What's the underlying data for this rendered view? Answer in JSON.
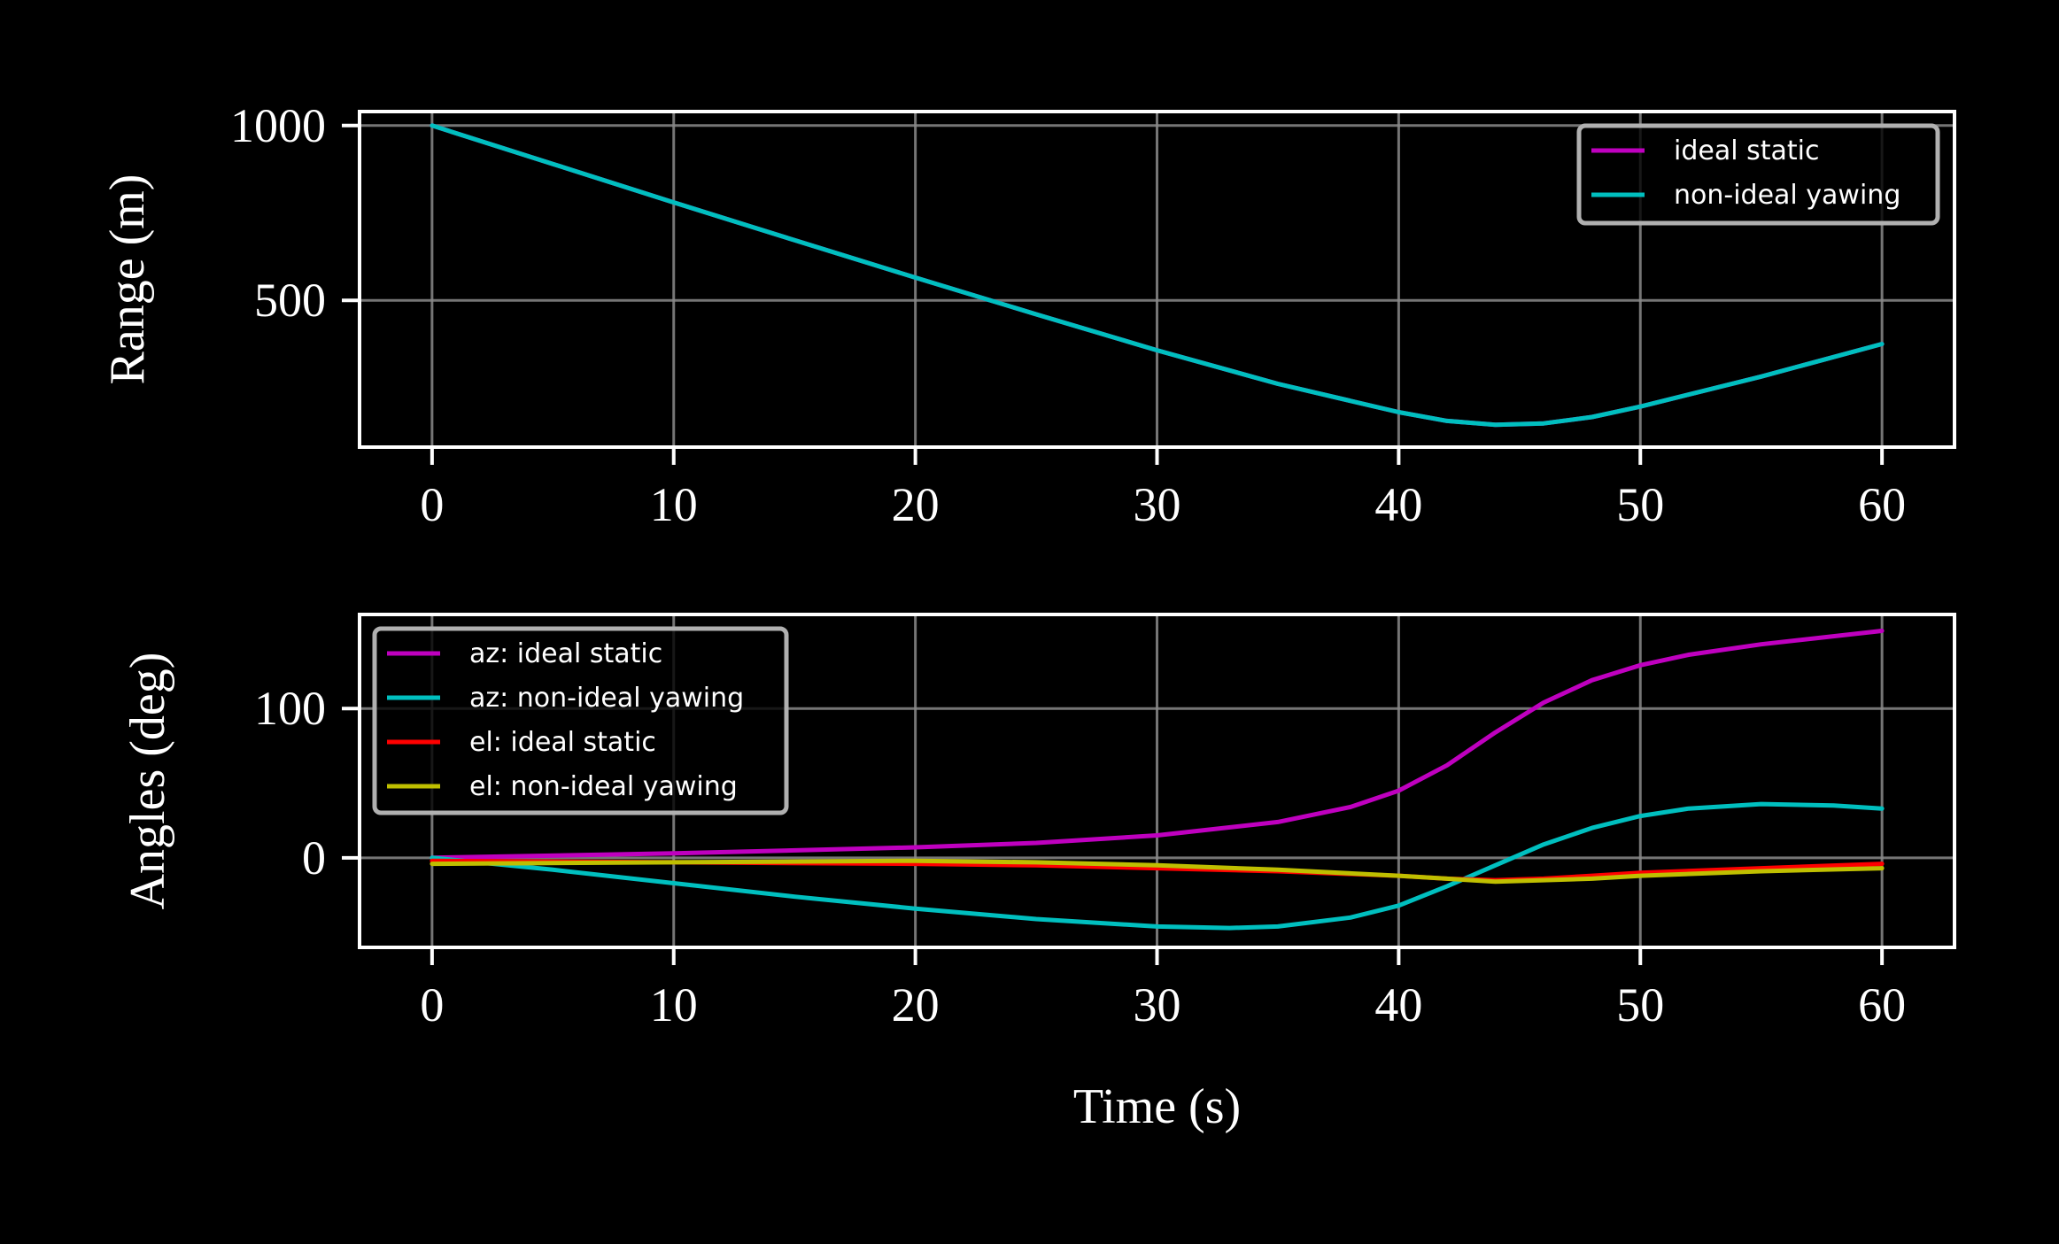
{
  "chart_data": [
    {
      "type": "line",
      "ylabel": "Range (m)",
      "xlabel": "",
      "xlim": [
        -3,
        63
      ],
      "ylim": [
        80,
        1040
      ],
      "xticks": [
        0,
        10,
        20,
        30,
        40,
        50,
        60
      ],
      "yticks": [
        500,
        1000
      ],
      "grid": true,
      "legend_position": "upper right",
      "series": [
        {
          "name": "ideal static",
          "color": "#bf00bf",
          "x": [
            0,
            5,
            10,
            15,
            20,
            25,
            30,
            35,
            40,
            42,
            44,
            46,
            48,
            50,
            55,
            60
          ],
          "y": [
            1000,
            890,
            780,
            672,
            565,
            460,
            357,
            261,
            180,
            155,
            144,
            148,
            166,
            196,
            282,
            375
          ]
        },
        {
          "name": "non-ideal yawing",
          "color": "#00bfbf",
          "x": [
            0,
            5,
            10,
            15,
            20,
            25,
            30,
            35,
            40,
            42,
            44,
            46,
            48,
            50,
            55,
            60
          ],
          "y": [
            1000,
            890,
            780,
            672,
            565,
            460,
            357,
            261,
            180,
            155,
            144,
            148,
            166,
            196,
            282,
            375
          ]
        }
      ]
    },
    {
      "type": "line",
      "ylabel": "Angles (deg)",
      "xlabel": "Time (s)",
      "xlim": [
        -3,
        63
      ],
      "ylim": [
        -60,
        163
      ],
      "xticks": [
        0,
        10,
        20,
        30,
        40,
        50,
        60
      ],
      "yticks": [
        0,
        100
      ],
      "grid": true,
      "legend_position": "upper left",
      "series": [
        {
          "name": "az: ideal static",
          "color": "#bf00bf",
          "x": [
            0,
            10,
            20,
            25,
            30,
            35,
            38,
            40,
            42,
            44,
            46,
            48,
            50,
            52,
            55,
            60
          ],
          "y": [
            0,
            3,
            7,
            10,
            15,
            24,
            34,
            45,
            62,
            84,
            104,
            119,
            129,
            136,
            143,
            152
          ]
        },
        {
          "name": "az: non-ideal yawing",
          "color": "#00bfbf",
          "x": [
            0,
            5,
            10,
            15,
            20,
            25,
            30,
            33,
            35,
            38,
            40,
            42,
            44,
            46,
            48,
            50,
            52,
            55,
            58,
            60
          ],
          "y": [
            0,
            -8,
            -17,
            -26,
            -34,
            -41,
            -46,
            -47,
            -46,
            -40,
            -32,
            -19,
            -5,
            9,
            20,
            28,
            33,
            36,
            35,
            33
          ]
        },
        {
          "name": "el: ideal static",
          "color": "#ff0000",
          "x": [
            0,
            10,
            20,
            25,
            30,
            35,
            40,
            42,
            44,
            46,
            48,
            50,
            55,
            60
          ],
          "y": [
            -2,
            -3,
            -4,
            -5,
            -7,
            -9,
            -12,
            -14,
            -15,
            -14,
            -12,
            -10,
            -7,
            -4
          ]
        },
        {
          "name": "el: non-ideal yawing",
          "color": "#bfbf00",
          "x": [
            0,
            10,
            20,
            25,
            30,
            35,
            40,
            42,
            44,
            46,
            48,
            50,
            55,
            60
          ],
          "y": [
            -4,
            -3,
            -2,
            -3,
            -5,
            -8,
            -12,
            -14,
            -16,
            -15,
            -14,
            -12,
            -9,
            -7
          ]
        }
      ]
    }
  ]
}
